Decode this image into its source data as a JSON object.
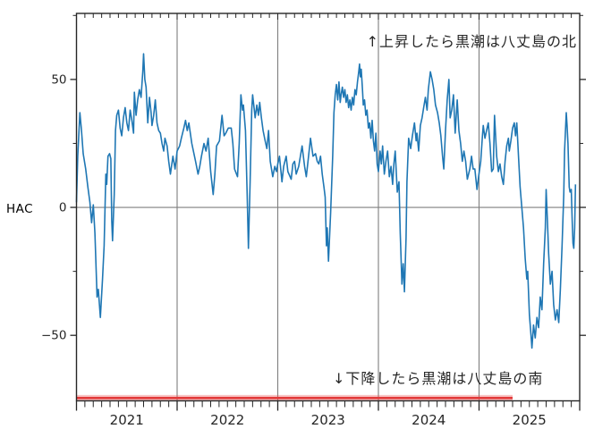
{
  "page": {
    "background": "#ffffff"
  },
  "chart_data": {
    "type": "line",
    "title": "",
    "xlabel": "",
    "ylabel": "HAC",
    "x_unit": "months since 2021-01-01",
    "xlim_months": [
      0,
      60
    ],
    "ylim": [
      -75.6,
      75.8
    ],
    "grid": "vertical-year-boundaries-plus-zero-line",
    "legend": "none",
    "colors": {
      "series": "#1f77b4",
      "grid": "#7f7f7f",
      "spine": "#262626",
      "tick": "#262626",
      "red_line": "#e23b3b",
      "red_halo": "rgba(235,90,90,0.35)",
      "text": "#262626"
    },
    "x_year_labels": [
      {
        "label": "2021",
        "center_month": 6
      },
      {
        "label": "2022",
        "center_month": 18
      },
      {
        "label": "2023",
        "center_month": 30
      },
      {
        "label": "2024",
        "center_month": 42
      },
      {
        "label": "2025",
        "center_month": 54
      }
    ],
    "x_year_boundaries_months": [
      12,
      24,
      36,
      48
    ],
    "yticks_major": [
      {
        "value": 50,
        "label": "50"
      },
      {
        "value": 0,
        "label": "0"
      },
      {
        "value": -50,
        "label": "−50"
      }
    ],
    "yticks_minor": [
      75,
      25,
      -25
    ],
    "zero_line": true,
    "minor_x_tick_every_months": 1,
    "annotations": [
      {
        "id": "north",
        "text": "↑上昇したら黒潮は八丈島の北",
        "position": "top-right"
      },
      {
        "id": "south",
        "text": "↓下降したら黒潮は八丈島の南",
        "position": "bottom-center"
      }
    ],
    "red_line": {
      "y_value": -74.5,
      "start_month": 0,
      "end_month": 52
    },
    "series": [
      {
        "name": "HAC",
        "color": "#1f77b4",
        "points": [
          [
            0,
            2
          ],
          [
            0.15,
            20
          ],
          [
            0.4,
            37
          ],
          [
            0.6,
            30
          ],
          [
            0.8,
            21
          ],
          [
            1.1,
            15
          ],
          [
            1.35,
            8
          ],
          [
            1.6,
            2
          ],
          [
            1.8,
            -6
          ],
          [
            2,
            1
          ],
          [
            2.2,
            -10
          ],
          [
            2.45,
            -35
          ],
          [
            2.6,
            -32
          ],
          [
            2.85,
            -43
          ],
          [
            3.1,
            -28
          ],
          [
            3.3,
            -15
          ],
          [
            3.5,
            13
          ],
          [
            3.6,
            9
          ],
          [
            3.75,
            20
          ],
          [
            3.95,
            21
          ],
          [
            4.1,
            19
          ],
          [
            4.2,
            -5
          ],
          [
            4.3,
            -13
          ],
          [
            4.5,
            5
          ],
          [
            4.65,
            30
          ],
          [
            4.8,
            36
          ],
          [
            5,
            38
          ],
          [
            5.2,
            31
          ],
          [
            5.4,
            28
          ],
          [
            5.6,
            35
          ],
          [
            5.8,
            39
          ],
          [
            6,
            33
          ],
          [
            6.2,
            30
          ],
          [
            6.4,
            38
          ],
          [
            6.6,
            34
          ],
          [
            6.8,
            29
          ],
          [
            6.9,
            45
          ],
          [
            7.1,
            36
          ],
          [
            7.3,
            42
          ],
          [
            7.5,
            46
          ],
          [
            7.7,
            43
          ],
          [
            7.9,
            53
          ],
          [
            8,
            60
          ],
          [
            8.15,
            50
          ],
          [
            8.3,
            47
          ],
          [
            8.5,
            33
          ],
          [
            8.7,
            43
          ],
          [
            8.9,
            37
          ],
          [
            9,
            32
          ],
          [
            9.2,
            36
          ],
          [
            9.4,
            42
          ],
          [
            9.6,
            33
          ],
          [
            9.8,
            30
          ],
          [
            10,
            29
          ],
          [
            10.2,
            25
          ],
          [
            10.4,
            22
          ],
          [
            10.55,
            27
          ],
          [
            10.8,
            24
          ],
          [
            11,
            18
          ],
          [
            11.2,
            13
          ],
          [
            11.5,
            20
          ],
          [
            11.75,
            15
          ],
          [
            12,
            22
          ],
          [
            12.3,
            24
          ],
          [
            12.5,
            27
          ],
          [
            12.8,
            31
          ],
          [
            13,
            34
          ],
          [
            13.2,
            30
          ],
          [
            13.4,
            33
          ],
          [
            13.75,
            25
          ],
          [
            14,
            21
          ],
          [
            14.2,
            18
          ],
          [
            14.5,
            13
          ],
          [
            14.7,
            16
          ],
          [
            14.9,
            20
          ],
          [
            15.2,
            25
          ],
          [
            15.45,
            22
          ],
          [
            15.7,
            27
          ],
          [
            16,
            14
          ],
          [
            16.3,
            5
          ],
          [
            16.5,
            13
          ],
          [
            16.7,
            24
          ],
          [
            17.05,
            26
          ],
          [
            17.35,
            36
          ],
          [
            17.6,
            28
          ],
          [
            17.8,
            29
          ],
          [
            18.1,
            31
          ],
          [
            18.45,
            31
          ],
          [
            18.65,
            25
          ],
          [
            18.85,
            15
          ],
          [
            19.2,
            12
          ],
          [
            19.4,
            25
          ],
          [
            19.6,
            44
          ],
          [
            19.8,
            38
          ],
          [
            19.9,
            40
          ],
          [
            20.15,
            30
          ],
          [
            20.35,
            5
          ],
          [
            20.5,
            -16
          ],
          [
            20.7,
            10
          ],
          [
            20.9,
            38
          ],
          [
            21,
            44
          ],
          [
            21.2,
            38
          ],
          [
            21.3,
            35
          ],
          [
            21.5,
            40
          ],
          [
            21.7,
            36
          ],
          [
            21.85,
            41
          ],
          [
            22.05,
            35
          ],
          [
            22.25,
            30
          ],
          [
            22.5,
            26
          ],
          [
            22.7,
            23
          ],
          [
            22.9,
            30
          ],
          [
            23.1,
            18
          ],
          [
            23.4,
            12
          ],
          [
            23.65,
            16
          ],
          [
            23.85,
            14
          ],
          [
            24,
            17
          ],
          [
            24.2,
            20
          ],
          [
            24.5,
            10
          ],
          [
            24.7,
            16
          ],
          [
            25,
            20
          ],
          [
            25.2,
            14
          ],
          [
            25.6,
            11
          ],
          [
            25.8,
            17
          ],
          [
            26,
            18
          ],
          [
            26.2,
            13
          ],
          [
            26.5,
            16
          ],
          [
            26.7,
            20
          ],
          [
            26.9,
            24
          ],
          [
            27.2,
            16
          ],
          [
            27.4,
            12
          ],
          [
            27.6,
            18
          ],
          [
            27.9,
            27
          ],
          [
            28.2,
            20
          ],
          [
            28.5,
            21
          ],
          [
            28.7,
            18
          ],
          [
            28.9,
            17
          ],
          [
            29.1,
            20
          ],
          [
            29.3,
            13
          ],
          [
            29.5,
            8
          ],
          [
            29.65,
            4
          ],
          [
            29.8,
            -15
          ],
          [
            29.9,
            -8
          ],
          [
            30.05,
            -21
          ],
          [
            30.3,
            -2
          ],
          [
            30.55,
            20
          ],
          [
            30.7,
            37
          ],
          [
            30.85,
            44
          ],
          [
            31,
            48
          ],
          [
            31.15,
            42
          ],
          [
            31.3,
            49
          ],
          [
            31.45,
            41
          ],
          [
            31.55,
            44
          ],
          [
            31.7,
            47
          ],
          [
            31.85,
            43
          ],
          [
            32,
            46
          ],
          [
            32.15,
            41
          ],
          [
            32.3,
            44
          ],
          [
            32.45,
            39
          ],
          [
            32.6,
            42
          ],
          [
            32.75,
            38
          ],
          [
            32.9,
            43
          ],
          [
            33.05,
            40
          ],
          [
            33.2,
            46
          ],
          [
            33.35,
            44
          ],
          [
            33.5,
            49
          ],
          [
            33.65,
            53
          ],
          [
            33.75,
            56
          ],
          [
            33.85,
            51
          ],
          [
            33.95,
            54
          ],
          [
            34.1,
            46
          ],
          [
            34.2,
            40
          ],
          [
            34.35,
            42
          ],
          [
            34.5,
            36
          ],
          [
            34.65,
            38
          ],
          [
            34.8,
            31
          ],
          [
            34.95,
            33
          ],
          [
            35.1,
            27
          ],
          [
            35.25,
            34
          ],
          [
            35.4,
            26
          ],
          [
            35.55,
            22
          ],
          [
            35.7,
            29
          ],
          [
            35.85,
            17
          ],
          [
            36,
            14
          ],
          [
            36.2,
            22
          ],
          [
            36.35,
            17
          ],
          [
            36.5,
            24
          ],
          [
            36.7,
            13
          ],
          [
            36.9,
            18
          ],
          [
            37.1,
            22
          ],
          [
            37.3,
            12
          ],
          [
            37.5,
            16
          ],
          [
            37.7,
            9
          ],
          [
            37.85,
            17
          ],
          [
            38,
            22
          ],
          [
            38.25,
            6
          ],
          [
            38.45,
            10
          ],
          [
            38.6,
            -10
          ],
          [
            38.8,
            -30
          ],
          [
            38.95,
            -22
          ],
          [
            39.1,
            -33
          ],
          [
            39.3,
            -12
          ],
          [
            39.4,
            10
          ],
          [
            39.6,
            27
          ],
          [
            39.85,
            23
          ],
          [
            40.05,
            28
          ],
          [
            40.3,
            33
          ],
          [
            40.5,
            26
          ],
          [
            40.6,
            29
          ],
          [
            40.8,
            22
          ],
          [
            41,
            32
          ],
          [
            41.2,
            35
          ],
          [
            41.4,
            39
          ],
          [
            41.6,
            43
          ],
          [
            41.8,
            38
          ],
          [
            41.95,
            46
          ],
          [
            42.2,
            53
          ],
          [
            42.4,
            50
          ],
          [
            42.6,
            46
          ],
          [
            42.8,
            40
          ],
          [
            43.05,
            37
          ],
          [
            43.25,
            33
          ],
          [
            43.45,
            28
          ],
          [
            43.65,
            20
          ],
          [
            43.8,
            15
          ],
          [
            44,
            30
          ],
          [
            44.2,
            42
          ],
          [
            44.4,
            50
          ],
          [
            44.55,
            35
          ],
          [
            44.75,
            38
          ],
          [
            44.95,
            44
          ],
          [
            45.15,
            29
          ],
          [
            45.4,
            42
          ],
          [
            45.6,
            30
          ],
          [
            45.8,
            25
          ],
          [
            46,
            18
          ],
          [
            46.2,
            22
          ],
          [
            46.4,
            18
          ],
          [
            46.6,
            11
          ],
          [
            46.9,
            15
          ],
          [
            47.1,
            20
          ],
          [
            47.3,
            15
          ],
          [
            47.5,
            15
          ],
          [
            47.75,
            7
          ],
          [
            47.95,
            12
          ],
          [
            48.2,
            18
          ],
          [
            48.4,
            28
          ],
          [
            48.5,
            32
          ],
          [
            48.7,
            27
          ],
          [
            48.9,
            30
          ],
          [
            49.1,
            33
          ],
          [
            49.3,
            25
          ],
          [
            49.5,
            14
          ],
          [
            49.7,
            15
          ],
          [
            49.85,
            36
          ],
          [
            50.1,
            20
          ],
          [
            50.3,
            14
          ],
          [
            50.5,
            17
          ],
          [
            50.7,
            12
          ],
          [
            50.9,
            9
          ],
          [
            51.1,
            18
          ],
          [
            51.3,
            24
          ],
          [
            51.5,
            27
          ],
          [
            51.6,
            22
          ],
          [
            51.8,
            26
          ],
          [
            52,
            31
          ],
          [
            52.2,
            33
          ],
          [
            52.35,
            28
          ],
          [
            52.5,
            33
          ],
          [
            52.7,
            20
          ],
          [
            52.9,
            8
          ],
          [
            53.1,
            0
          ],
          [
            53.3,
            -8
          ],
          [
            53.5,
            -20
          ],
          [
            53.7,
            -28
          ],
          [
            53.8,
            -25
          ],
          [
            54,
            -42
          ],
          [
            54.2,
            -50
          ],
          [
            54.3,
            -55
          ],
          [
            54.5,
            -46
          ],
          [
            54.7,
            -51
          ],
          [
            54.9,
            -43
          ],
          [
            55.1,
            -47
          ],
          [
            55.3,
            -35
          ],
          [
            55.5,
            -40
          ],
          [
            55.7,
            -22
          ],
          [
            55.9,
            -8
          ],
          [
            56,
            7
          ],
          [
            56.15,
            -5
          ],
          [
            56.3,
            -18
          ],
          [
            56.5,
            -30
          ],
          [
            56.7,
            -25
          ],
          [
            56.9,
            -38
          ],
          [
            57.1,
            -44
          ],
          [
            57.3,
            -40
          ],
          [
            57.5,
            -45
          ],
          [
            57.7,
            -32
          ],
          [
            57.9,
            -15
          ],
          [
            58.1,
            5
          ],
          [
            58.2,
            22
          ],
          [
            58.3,
            30
          ],
          [
            58.4,
            37
          ],
          [
            58.5,
            32
          ],
          [
            58.6,
            25
          ],
          [
            58.75,
            8
          ],
          [
            58.85,
            6
          ],
          [
            59,
            7
          ],
          [
            59.1,
            -5
          ],
          [
            59.2,
            -14
          ],
          [
            59.3,
            -16
          ],
          [
            59.4,
            -8
          ],
          [
            59.5,
            9
          ]
        ]
      }
    ]
  }
}
